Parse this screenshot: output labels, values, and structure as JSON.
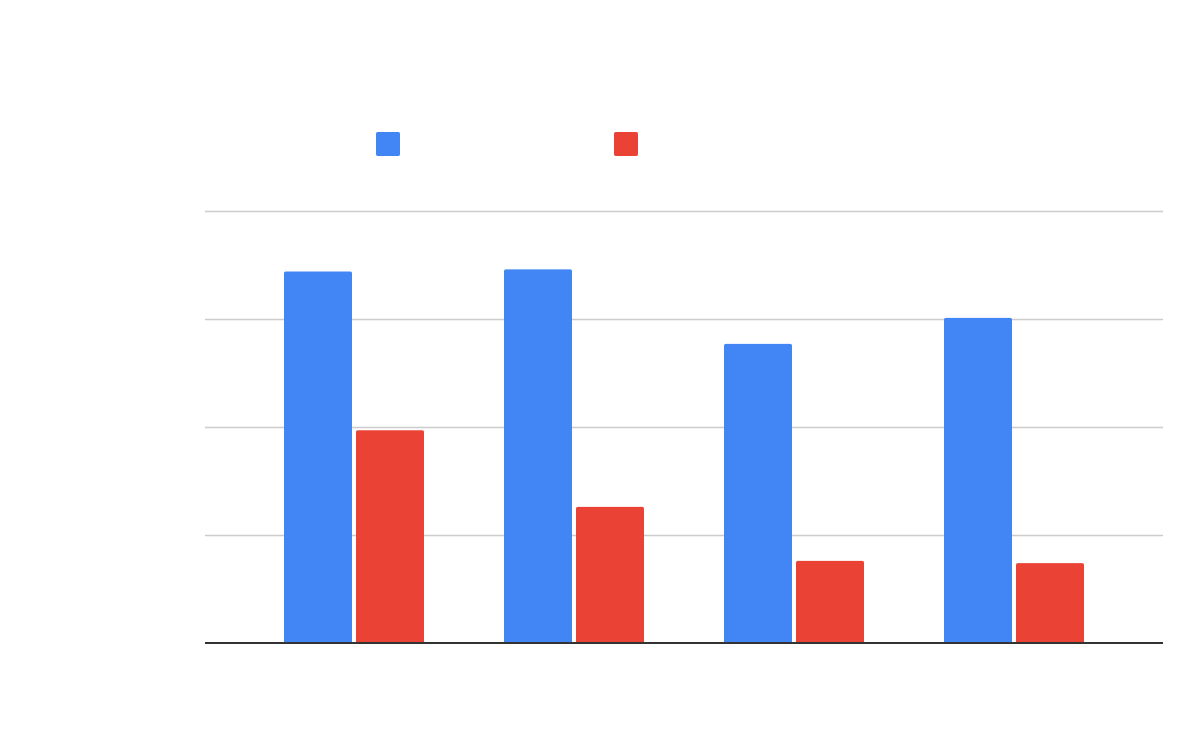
{
  "chart_data": {
    "type": "bar",
    "categories": [
      "",
      "",
      "",
      ""
    ],
    "series": [
      {
        "color": "#4285f4",
        "values": [
          3.44,
          3.46,
          2.77,
          3.01
        ]
      },
      {
        "color": "#ea4335",
        "values": [
          1.97,
          1.26,
          0.76,
          0.74
        ]
      }
    ],
    "ylim": [
      0,
      4
    ],
    "yticks": [
      0,
      1,
      2,
      3,
      4
    ],
    "grid": true,
    "legend": "top",
    "title": "",
    "xlabel": "",
    "ylabel": ""
  },
  "colors": {
    "gridline": "#cccccc",
    "baseline": "#333333",
    "background": "#ffffff"
  }
}
